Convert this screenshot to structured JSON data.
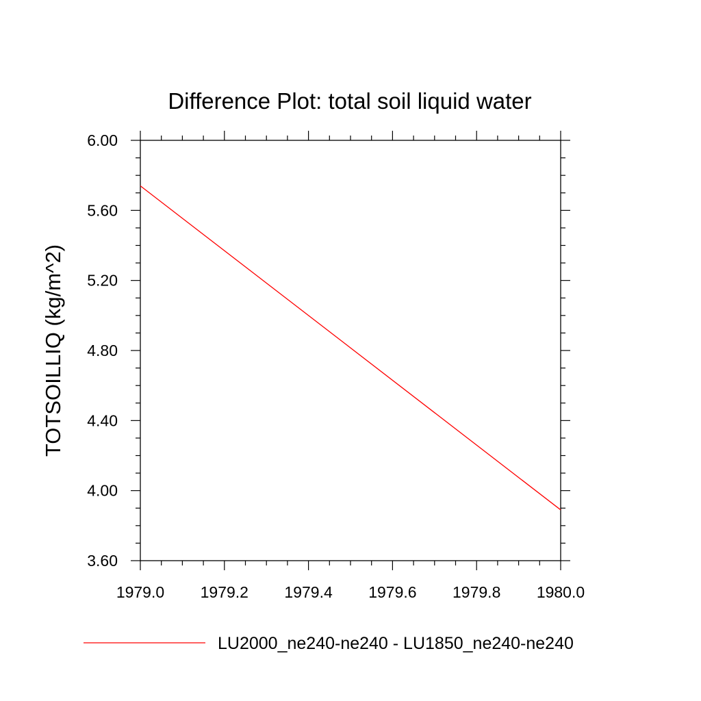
{
  "chart_data": {
    "type": "line",
    "title": "Difference Plot: total soil liquid water",
    "xlabel": "",
    "ylabel": "TOTSOILLIQ  (kg/m^2)",
    "xlim": [
      1979.0,
      1980.0
    ],
    "ylim": [
      3.6,
      6.0
    ],
    "x_ticks": [
      1979.0,
      1979.2,
      1979.4,
      1979.6,
      1979.8,
      1980.0
    ],
    "x_tick_labels": [
      "1979.0",
      "1979.2",
      "1979.4",
      "1979.6",
      "1979.8",
      "1980.0"
    ],
    "y_ticks": [
      3.6,
      4.0,
      4.4,
      4.8,
      5.2,
      5.6,
      6.0
    ],
    "y_tick_labels": [
      "3.60",
      "4.00",
      "4.40",
      "4.80",
      "5.20",
      "5.60",
      "6.00"
    ],
    "grid": false,
    "legend_position": "bottom",
    "series": [
      {
        "name": "LU2000_ne240-ne240 - LU1850_ne240-ne240",
        "color": "#ff0000",
        "x": [
          1979.0,
          1980.0
        ],
        "y": [
          5.74,
          3.89
        ]
      }
    ]
  }
}
